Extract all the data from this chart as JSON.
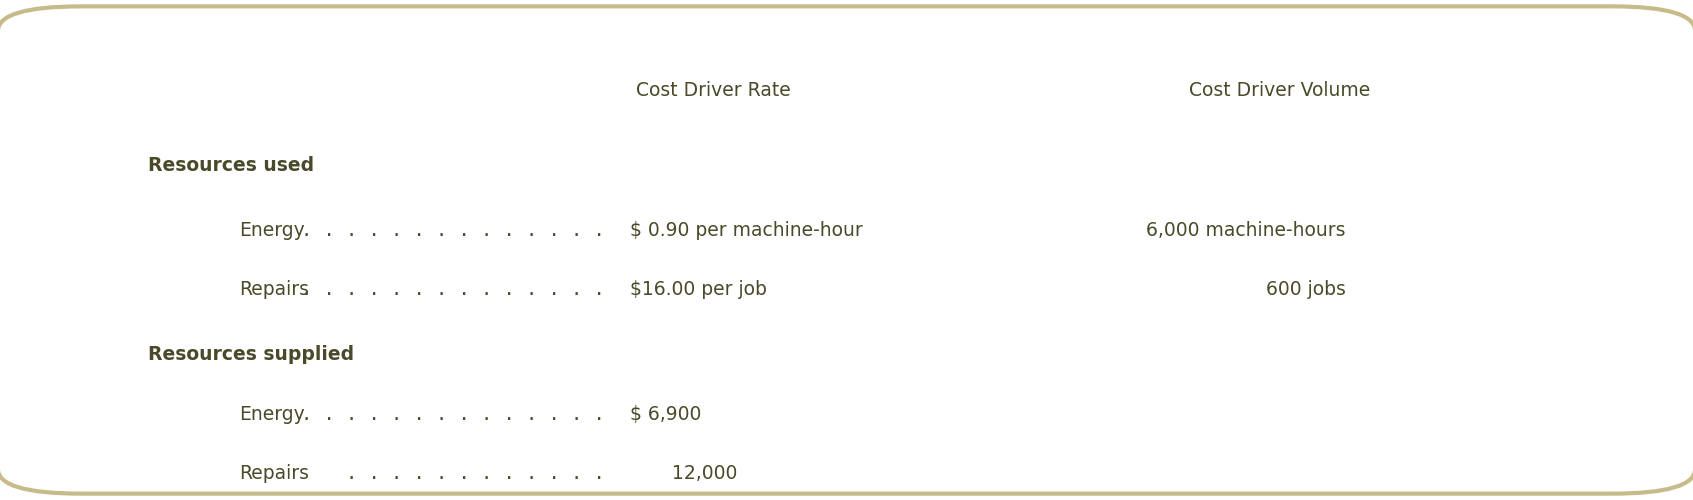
{
  "background_color": "#ffffff",
  "border_color": "#c8bb8a",
  "header_col1": "Cost Driver Rate",
  "header_col2": "Cost Driver Volume",
  "section1_label": "Resources used",
  "section2_label": "Resources supplied",
  "rows": [
    {
      "indent": true,
      "label": "Energy",
      "dots": true,
      "col1": "$ 0.90 per machine-hour",
      "col2": "6,000 machine-hours"
    },
    {
      "indent": true,
      "label": "Repairs",
      "dots": true,
      "col1": "$16.00 per job",
      "col2": "600 jobs"
    },
    {
      "indent": false,
      "label": "Resources supplied",
      "dots": false,
      "col1": "",
      "col2": ""
    },
    {
      "indent": true,
      "label": "Energy",
      "dots": true,
      "col1": "$ 6,900",
      "col2": ""
    },
    {
      "indent": true,
      "label": "Repairs",
      "dots": true,
      "col1": "  12,000",
      "col2": ""
    }
  ],
  "text_color": "#4a4a2a",
  "header_fontsize": 13.5,
  "label_fontsize": 13.5,
  "bold_labels": [
    "Resources used",
    "Resources supplied"
  ],
  "figsize": [
    16.93,
    5.0
  ],
  "dpi": 100
}
